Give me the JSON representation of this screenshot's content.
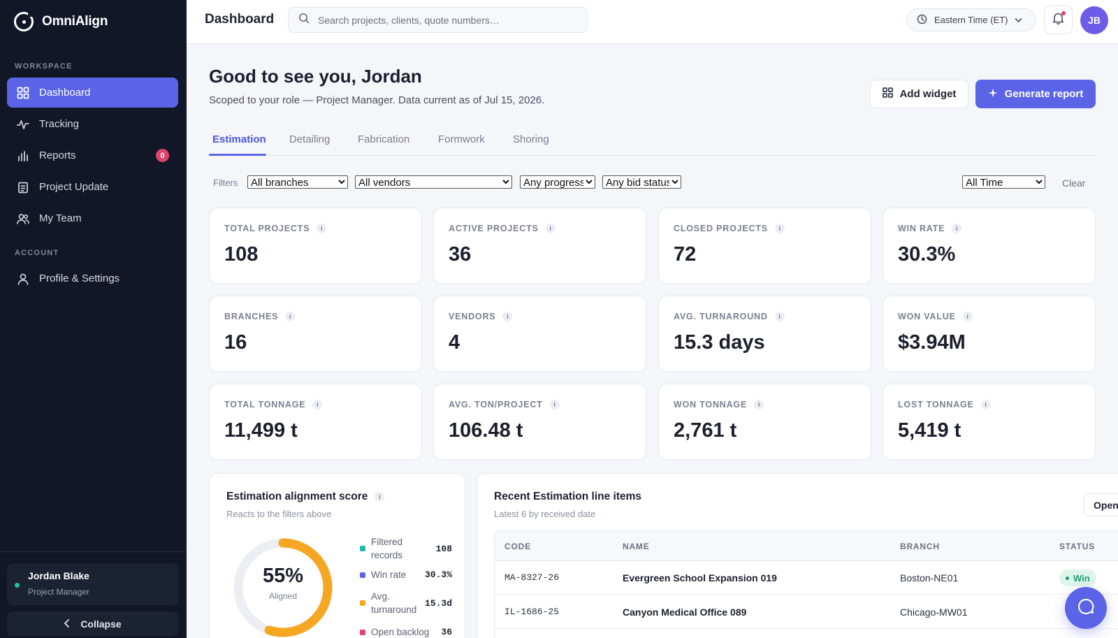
{
  "app": {
    "name": "OmniAlign"
  },
  "sidebar": {
    "workspace_label": "WORKSPACE",
    "account_label": "ACCOUNT",
    "items": [
      {
        "label": "Dashboard",
        "icon": "grid-icon"
      },
      {
        "label": "Tracking",
        "icon": "activity-icon"
      },
      {
        "label": "Reports",
        "icon": "bar-chart-icon",
        "badge": "0"
      },
      {
        "label": "Project Update",
        "icon": "clipboard-icon"
      },
      {
        "label": "My Team",
        "icon": "users-icon"
      }
    ],
    "account_items": [
      {
        "label": "Profile & Settings",
        "icon": "user-icon"
      }
    ],
    "user": {
      "name": "Jordan Blake",
      "role": "Project Manager"
    },
    "collapse_label": "Collapse"
  },
  "topbar": {
    "title": "Dashboard",
    "search_placeholder": "Search projects, clients, quote numbers…",
    "timezone": "Eastern Time (ET)",
    "avatar_initials": "JB"
  },
  "main": {
    "greeting": "Good to see you, Jordan",
    "subtitle": "Scoped to your role — Project Manager. Data current as of Jul 15, 2026.",
    "add_widget_label": "Add widget",
    "generate_report_label": "Generate report",
    "tabs": [
      "Estimation",
      "Detailing",
      "Fabrication",
      "Formwork",
      "Shoring"
    ],
    "filters": {
      "label": "Filters",
      "branch": "All branches",
      "vendor": "All vendors",
      "progress": "Any progress",
      "bid_status": "Any bid status",
      "time": "All Time",
      "clear_label": "Clear"
    },
    "metrics": [
      {
        "label": "TOTAL PROJECTS",
        "value": "108"
      },
      {
        "label": "ACTIVE PROJECTS",
        "value": "36"
      },
      {
        "label": "CLOSED PROJECTS",
        "value": "72"
      },
      {
        "label": "WIN RATE",
        "value": "30.3%"
      },
      {
        "label": "BRANCHES",
        "value": "16"
      },
      {
        "label": "VENDORS",
        "value": "4"
      },
      {
        "label": "AVG. TURNAROUND",
        "value": "15.3 days"
      },
      {
        "label": "WON VALUE",
        "value": "$3.94M"
      },
      {
        "label": "TOTAL TONNAGE",
        "value": "11,499 t"
      },
      {
        "label": "AVG. TON/PROJECT",
        "value": "106.48 t"
      },
      {
        "label": "WON TONNAGE",
        "value": "2,761 t"
      },
      {
        "label": "LOST TONNAGE",
        "value": "5,419 t"
      }
    ],
    "alignment": {
      "title": "Estimation alignment score",
      "subtitle": "Reacts to the filters above",
      "percent": "55%",
      "percent_value": 55,
      "caption": "Aligned",
      "ring_color": "#f5a623",
      "legend": [
        {
          "label": "Filtered records",
          "value": "108",
          "color": "#22b8a5"
        },
        {
          "label": "Win rate",
          "value": "30.3%",
          "color": "#5b63e6"
        },
        {
          "label": "Avg. turnaround",
          "value": "15.3d",
          "color": "#f5a623"
        },
        {
          "label": "Open backlog",
          "value": "36",
          "color": "#e0436b"
        }
      ]
    },
    "recent": {
      "title": "Recent Estimation line items",
      "subtitle": "Latest 6 by received date",
      "open_label": "Open",
      "columns": [
        "CODE",
        "NAME",
        "BRANCH",
        "STATUS"
      ],
      "rows": [
        {
          "code": "MA-8327-26",
          "name": "Evergreen School Expansion 019",
          "branch": "Boston-NE01",
          "status": "Win"
        },
        {
          "code": "IL-1686-25",
          "name": "Canyon Medical Office 089",
          "branch": "Chicago-MW01",
          "status": ""
        }
      ]
    }
  }
}
